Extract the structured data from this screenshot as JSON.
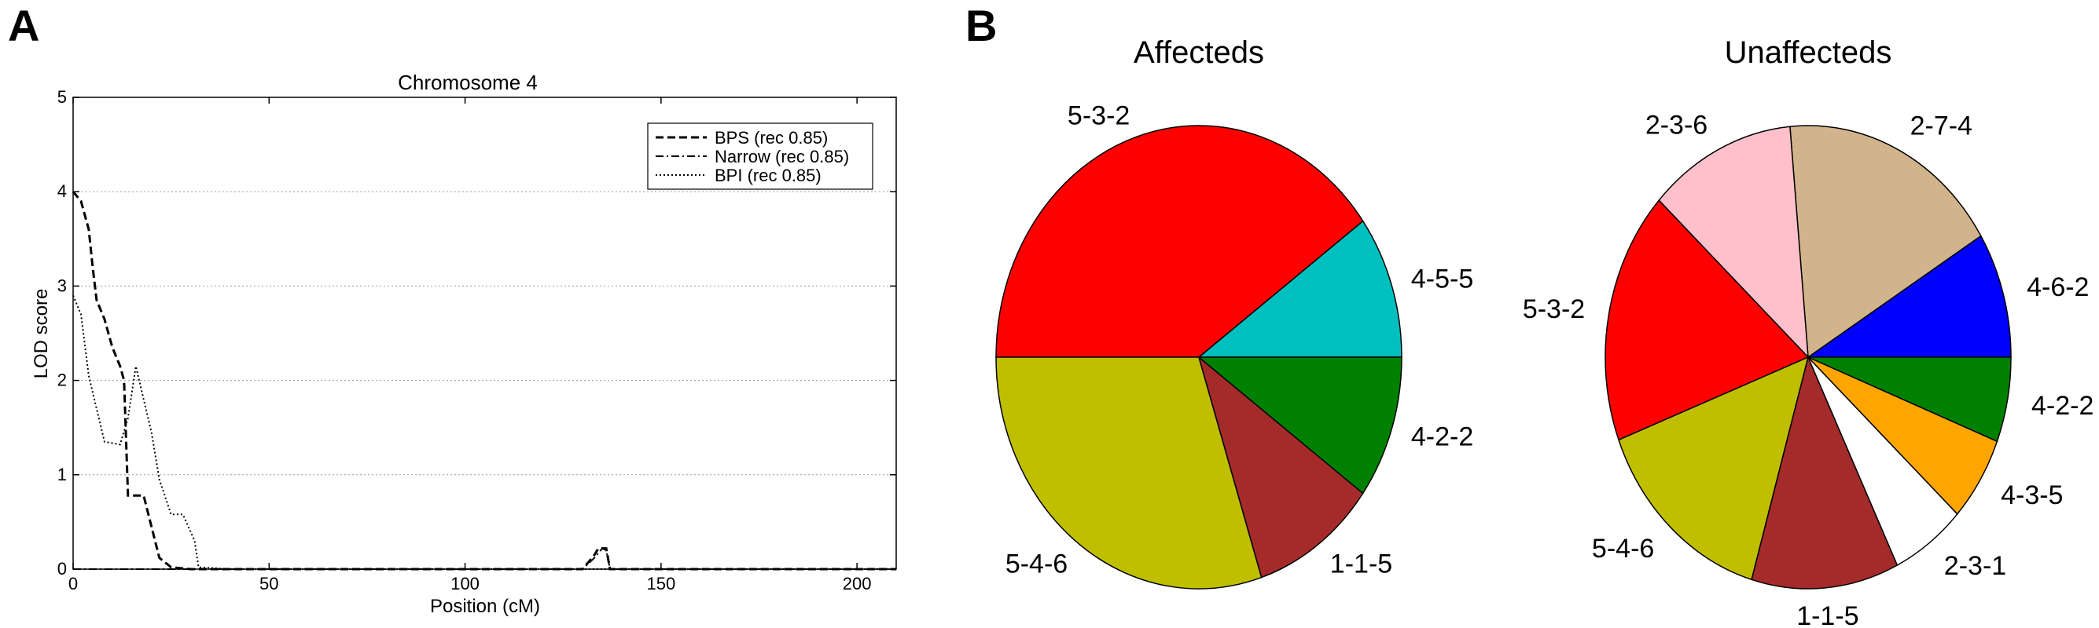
{
  "panels": {
    "a": "A",
    "b": "B"
  },
  "chart_data": [
    {
      "type": "line",
      "title": "Chromosome 4",
      "xlabel": "Position (cM)",
      "ylabel": "LOD score",
      "xlim": [
        0,
        210
      ],
      "ylim": [
        0,
        5
      ],
      "xticks": [
        0,
        50,
        100,
        150,
        200
      ],
      "yticks": [
        0,
        1,
        2,
        3,
        4,
        5
      ],
      "grid": "horizontal dotted",
      "legend_position": "top-right",
      "series": [
        {
          "name": "BPS (rec 0.85)",
          "style": "dashed",
          "x": [
            0,
            2,
            4,
            5,
            6,
            8,
            10,
            12,
            13,
            14,
            16,
            18,
            20,
            22,
            25,
            30,
            40,
            100,
            130,
            133,
            134,
            136,
            137,
            140,
            200,
            210
          ],
          "y": [
            4.0,
            3.9,
            3.6,
            3.2,
            2.85,
            2.65,
            2.35,
            2.15,
            2.0,
            0.78,
            0.78,
            0.78,
            0.45,
            0.12,
            0.02,
            0,
            0,
            0,
            0,
            0.15,
            0.22,
            0.22,
            0,
            0,
            0,
            0
          ]
        },
        {
          "name": "Narrow (rec 0.85)",
          "style": "dashdot",
          "x": [
            0,
            10,
            100,
            130,
            133,
            135,
            136,
            137,
            140,
            210
          ],
          "y": [
            0,
            0,
            0,
            0,
            0.12,
            0.22,
            0.2,
            0,
            0,
            0
          ]
        },
        {
          "name": "BPI (rec 0.85)",
          "style": "dotted",
          "x": [
            0,
            2,
            4,
            6,
            8,
            12,
            14,
            16,
            18,
            20,
            22,
            25,
            28,
            31,
            32,
            40,
            210
          ],
          "y": [
            2.9,
            2.7,
            2.05,
            1.7,
            1.35,
            1.32,
            1.6,
            2.15,
            1.8,
            1.45,
            0.95,
            0.58,
            0.58,
            0.3,
            0.02,
            0,
            0
          ]
        }
      ]
    },
    {
      "type": "pie",
      "title": "Affecteds",
      "start_angle_deg": 0,
      "direction": "counterclockwise",
      "slices": [
        {
          "label": "4-5-5",
          "value": 10,
          "color": "#00bfbf"
        },
        {
          "label": "5-3-2",
          "value": 40,
          "color": "#ff0000"
        },
        {
          "label": "5-4-6",
          "value": 30,
          "color": "#bfbf00"
        },
        {
          "label": "1-1-5",
          "value": 10,
          "color": "#a52a2a"
        },
        {
          "label": "4-2-2",
          "value": 10,
          "color": "#008000"
        }
      ]
    },
    {
      "type": "pie",
      "title": "Unaffecteds",
      "start_angle_deg": 0,
      "direction": "counterclockwise",
      "slices": [
        {
          "label": "4-6-2",
          "value": 8.3,
          "color": "#0000ff"
        },
        {
          "label": "2-7-4",
          "value": 16.7,
          "color": "#d2b48c"
        },
        {
          "label": "2-3-6",
          "value": 11.1,
          "color": "#ffc0cb"
        },
        {
          "label": "5-3-2",
          "value": 16.7,
          "color": "#ff0000"
        },
        {
          "label": "5-4-6",
          "value": 13.9,
          "color": "#bfbf00"
        },
        {
          "label": "1-1-5",
          "value": 11.1,
          "color": "#a52a2a"
        },
        {
          "label": "2-3-1",
          "value": 5.6,
          "color": "#ffffff"
        },
        {
          "label": "4-3-5",
          "value": 5.6,
          "color": "#ffa500"
        },
        {
          "label": "4-2-2",
          "value": 5.6,
          "color": "#008000"
        }
      ]
    }
  ]
}
